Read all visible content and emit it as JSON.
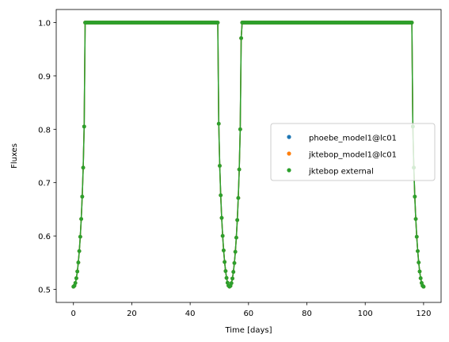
{
  "chart_data": {
    "type": "scatter",
    "title": "",
    "xlabel": "Time [days]",
    "ylabel": "Fluxes",
    "xlim": [
      -5.9,
      126.0
    ],
    "ylim": [
      0.4755,
      1.0245
    ],
    "xticks": [
      0,
      20,
      40,
      60,
      80,
      100,
      120
    ],
    "yticks": [
      0.5,
      0.6,
      0.7,
      0.8,
      0.9,
      1.0
    ],
    "xtick_labels": [
      "0",
      "20",
      "40",
      "60",
      "80",
      "100",
      "120"
    ],
    "ytick_labels": [
      "0.5",
      "0.6",
      "0.7",
      "0.8",
      "0.9",
      "1.0"
    ],
    "grid": false,
    "legend": {
      "placement": "center-right"
    },
    "lightcurve": {
      "t_start": 0,
      "t_end": 120,
      "eclipse_centers": [
        0,
        53.5,
        120
      ],
      "eclipse_half_width": 4.0,
      "min_flux": 0.505,
      "max_flux": 1.0,
      "n_points": 360
    },
    "series": [
      {
        "name": "phoebe_model1@lc01",
        "color": "#1f77b4",
        "marker": "point"
      },
      {
        "name": "jktebop_model1@lc01",
        "color": "#ff7f0e",
        "marker": "point"
      },
      {
        "name": "jktebop external",
        "color": "#2ca02c",
        "marker": "point"
      }
    ]
  }
}
